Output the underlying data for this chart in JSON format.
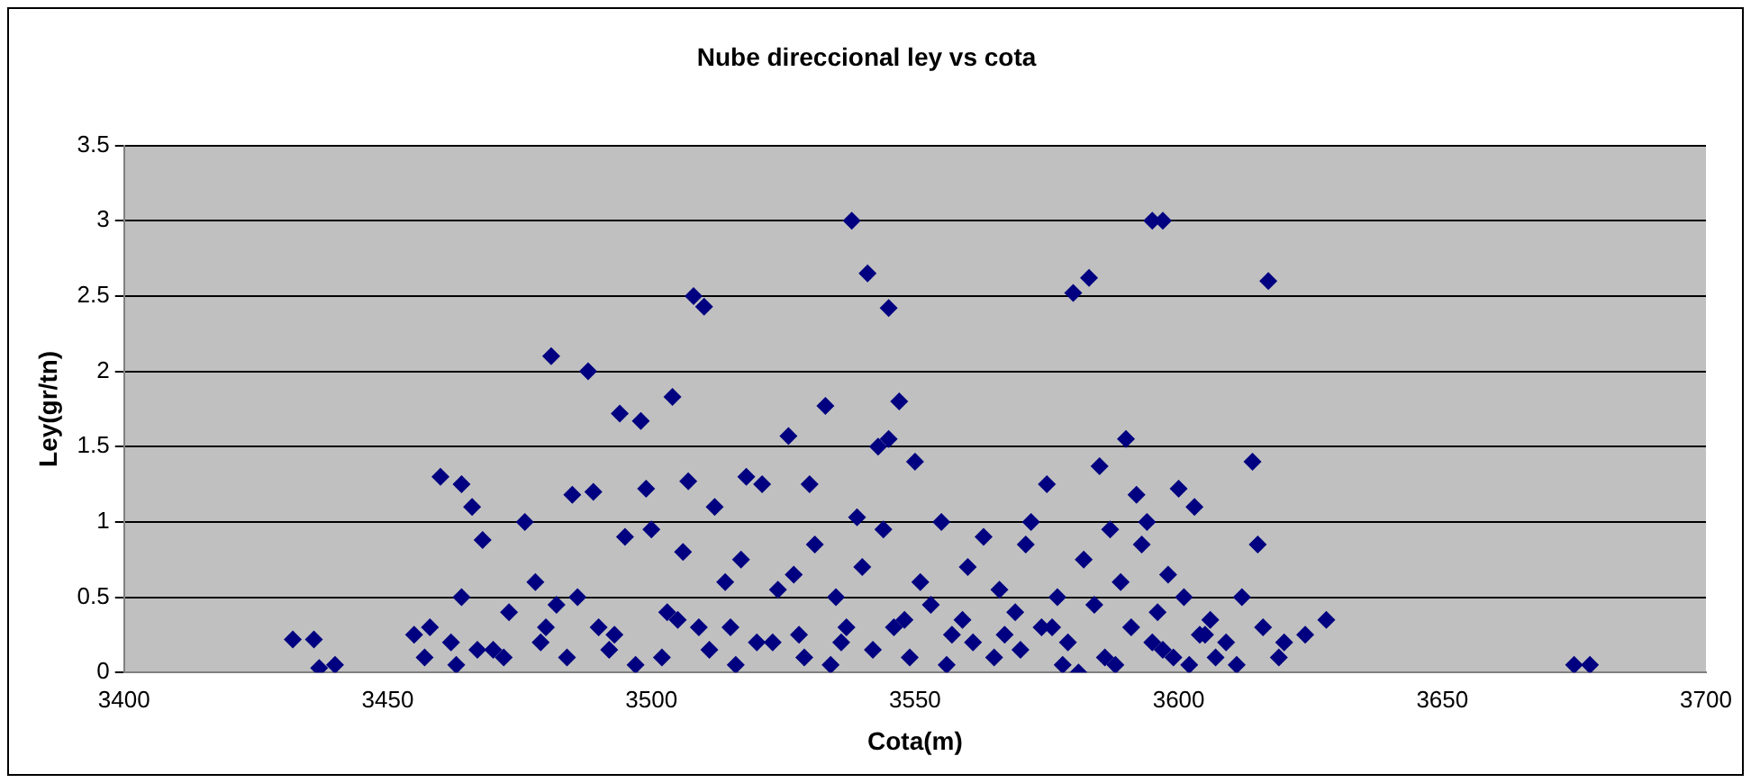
{
  "chart_data": {
    "type": "scatter",
    "title": "Nube direccional ley vs cota",
    "xlabel": "Cota(m)",
    "ylabel": "Ley(gr/tn)",
    "xlim": [
      3400,
      3700
    ],
    "xticks": [
      3400,
      3450,
      3500,
      3550,
      3600,
      3650,
      3700
    ],
    "ylim": [
      0,
      3.5
    ],
    "yticks": [
      0,
      0.5,
      1,
      1.5,
      2,
      2.5,
      3,
      3.5
    ],
    "grid": "y",
    "legend": false,
    "marker": "diamond",
    "series": [
      {
        "color": "#000080",
        "x": [
          3432,
          3436,
          3437,
          3440,
          3675,
          3678,
          3538,
          3595,
          3597,
          3541,
          3545,
          3508,
          3510,
          3481,
          3488,
          3583,
          3580,
          3617,
          3504,
          3494,
          3498,
          3533,
          3547,
          3545,
          3543,
          3550,
          3526,
          3590,
          3614,
          3518,
          3521,
          3460,
          3464,
          3466,
          3468,
          3485,
          3489,
          3499,
          3507,
          3575,
          3585,
          3600,
          3603,
          3592,
          3615,
          3594,
          3572,
          3555,
          3539,
          3530,
          3512,
          3476,
          3464,
          3458,
          3455,
          3462,
          3470,
          3473,
          3478,
          3482,
          3486,
          3490,
          3495,
          3500,
          3503,
          3506,
          3509,
          3514,
          3517,
          3520,
          3524,
          3527,
          3531,
          3535,
          3537,
          3540,
          3544,
          3548,
          3551,
          3553,
          3557,
          3560,
          3563,
          3566,
          3569,
          3571,
          3574,
          3577,
          3579,
          3582,
          3584,
          3587,
          3589,
          3591,
          3593,
          3596,
          3598,
          3601,
          3604,
          3606,
          3609,
          3612,
          3616,
          3620,
          3624,
          3628,
          3457,
          3463,
          3467,
          3472,
          3479,
          3484,
          3492,
          3497,
          3502,
          3511,
          3516,
          3523,
          3529,
          3534,
          3542,
          3549,
          3556,
          3561,
          3565,
          3570,
          3578,
          3581,
          3586,
          3588,
          3597,
          3599,
          3602,
          3607,
          3611,
          3619,
          3480,
          3493,
          3505,
          3515,
          3528,
          3536,
          3546,
          3559,
          3567,
          3576,
          3595,
          3605
        ],
        "values": [
          0.22,
          0.22,
          0.03,
          0.05,
          0.05,
          0.05,
          3.0,
          3.0,
          3.0,
          2.65,
          2.42,
          2.5,
          2.43,
          2.1,
          2.0,
          2.62,
          2.52,
          2.6,
          1.83,
          1.72,
          1.67,
          1.77,
          1.8,
          1.55,
          1.5,
          1.4,
          1.57,
          1.55,
          1.4,
          1.3,
          1.25,
          1.3,
          1.25,
          1.1,
          0.88,
          1.18,
          1.2,
          1.22,
          1.27,
          1.25,
          1.37,
          1.22,
          1.1,
          1.18,
          0.85,
          1.0,
          1.0,
          1.0,
          1.03,
          1.25,
          1.1,
          1.0,
          0.5,
          0.3,
          0.25,
          0.2,
          0.15,
          0.4,
          0.6,
          0.45,
          0.5,
          0.3,
          0.9,
          0.95,
          0.4,
          0.8,
          0.3,
          0.6,
          0.75,
          0.2,
          0.55,
          0.65,
          0.85,
          0.5,
          0.3,
          0.7,
          0.95,
          0.35,
          0.6,
          0.45,
          0.25,
          0.7,
          0.9,
          0.55,
          0.4,
          0.85,
          0.3,
          0.5,
          0.2,
          0.75,
          0.45,
          0.95,
          0.6,
          0.3,
          0.85,
          0.4,
          0.65,
          0.5,
          0.25,
          0.35,
          0.2,
          0.5,
          0.3,
          0.2,
          0.25,
          0.35,
          0.1,
          0.05,
          0.15,
          0.1,
          0.2,
          0.1,
          0.15,
          0.05,
          0.1,
          0.15,
          0.05,
          0.2,
          0.1,
          0.05,
          0.15,
          0.1,
          0.05,
          0.2,
          0.1,
          0.15,
          0.05,
          0.0,
          0.1,
          0.05,
          0.15,
          0.1,
          0.05,
          0.1,
          0.05,
          0.1,
          0.3,
          0.25,
          0.35,
          0.3,
          0.25,
          0.2,
          0.3,
          0.35,
          0.25,
          0.3,
          0.2,
          0.25
        ]
      }
    ]
  }
}
